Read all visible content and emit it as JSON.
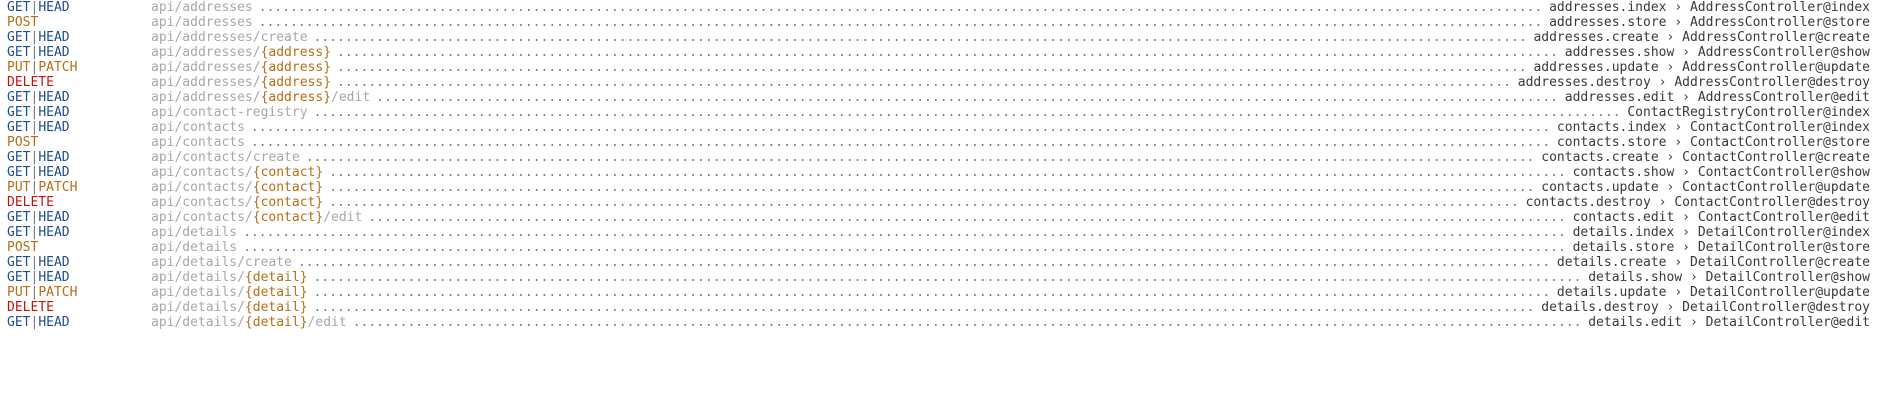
{
  "colors": {
    "get": "#1f4f8a",
    "post": "#b76e16",
    "delete": "#c1140e",
    "uri": "#a8a8a8",
    "param": "#b76e16",
    "target": "#3a3a3a"
  },
  "separator": "|",
  "arrow": "›",
  "routes": [
    {
      "methods": [
        "GET",
        "HEAD"
      ],
      "uri": [
        {
          "t": "api/addresses"
        }
      ],
      "name": "addresses.index",
      "action": "AddressController@index"
    },
    {
      "methods": [
        "POST"
      ],
      "uri": [
        {
          "t": "api/addresses"
        }
      ],
      "name": "addresses.store",
      "action": "AddressController@store"
    },
    {
      "methods": [
        "GET",
        "HEAD"
      ],
      "uri": [
        {
          "t": "api/addresses/create"
        }
      ],
      "name": "addresses.create",
      "action": "AddressController@create"
    },
    {
      "methods": [
        "GET",
        "HEAD"
      ],
      "uri": [
        {
          "t": "api/addresses/"
        },
        {
          "p": "{address}"
        }
      ],
      "name": "addresses.show",
      "action": "AddressController@show"
    },
    {
      "methods": [
        "PUT",
        "PATCH"
      ],
      "uri": [
        {
          "t": "api/addresses/"
        },
        {
          "p": "{address}"
        }
      ],
      "name": "addresses.update",
      "action": "AddressController@update"
    },
    {
      "methods": [
        "DELETE"
      ],
      "uri": [
        {
          "t": "api/addresses/"
        },
        {
          "p": "{address}"
        }
      ],
      "name": "addresses.destroy",
      "action": "AddressController@destroy"
    },
    {
      "methods": [
        "GET",
        "HEAD"
      ],
      "uri": [
        {
          "t": "api/addresses/"
        },
        {
          "p": "{address}"
        },
        {
          "t": "/edit"
        }
      ],
      "name": "addresses.edit",
      "action": "AddressController@edit"
    },
    {
      "methods": [
        "GET",
        "HEAD"
      ],
      "uri": [
        {
          "t": "api/contact-registry"
        }
      ],
      "name": "",
      "action": "ContactRegistryController@index"
    },
    {
      "methods": [
        "GET",
        "HEAD"
      ],
      "uri": [
        {
          "t": "api/contacts"
        }
      ],
      "name": "contacts.index",
      "action": "ContactController@index"
    },
    {
      "methods": [
        "POST"
      ],
      "uri": [
        {
          "t": "api/contacts"
        }
      ],
      "name": "contacts.store",
      "action": "ContactController@store"
    },
    {
      "methods": [
        "GET",
        "HEAD"
      ],
      "uri": [
        {
          "t": "api/contacts/create"
        }
      ],
      "name": "contacts.create",
      "action": "ContactController@create"
    },
    {
      "methods": [
        "GET",
        "HEAD"
      ],
      "uri": [
        {
          "t": "api/contacts/"
        },
        {
          "p": "{contact}"
        }
      ],
      "name": "contacts.show",
      "action": "ContactController@show"
    },
    {
      "methods": [
        "PUT",
        "PATCH"
      ],
      "uri": [
        {
          "t": "api/contacts/"
        },
        {
          "p": "{contact}"
        }
      ],
      "name": "contacts.update",
      "action": "ContactController@update"
    },
    {
      "methods": [
        "DELETE"
      ],
      "uri": [
        {
          "t": "api/contacts/"
        },
        {
          "p": "{contact}"
        }
      ],
      "name": "contacts.destroy",
      "action": "ContactController@destroy"
    },
    {
      "methods": [
        "GET",
        "HEAD"
      ],
      "uri": [
        {
          "t": "api/contacts/"
        },
        {
          "p": "{contact}"
        },
        {
          "t": "/edit"
        }
      ],
      "name": "contacts.edit",
      "action": "ContactController@edit"
    },
    {
      "methods": [
        "GET",
        "HEAD"
      ],
      "uri": [
        {
          "t": "api/details"
        }
      ],
      "name": "details.index",
      "action": "DetailController@index"
    },
    {
      "methods": [
        "POST"
      ],
      "uri": [
        {
          "t": "api/details"
        }
      ],
      "name": "details.store",
      "action": "DetailController@store"
    },
    {
      "methods": [
        "GET",
        "HEAD"
      ],
      "uri": [
        {
          "t": "api/details/create"
        }
      ],
      "name": "details.create",
      "action": "DetailController@create"
    },
    {
      "methods": [
        "GET",
        "HEAD"
      ],
      "uri": [
        {
          "t": "api/details/"
        },
        {
          "p": "{detail}"
        }
      ],
      "name": "details.show",
      "action": "DetailController@show"
    },
    {
      "methods": [
        "PUT",
        "PATCH"
      ],
      "uri": [
        {
          "t": "api/details/"
        },
        {
          "p": "{detail}"
        }
      ],
      "name": "details.update",
      "action": "DetailController@update"
    },
    {
      "methods": [
        "DELETE"
      ],
      "uri": [
        {
          "t": "api/details/"
        },
        {
          "p": "{detail}"
        }
      ],
      "name": "details.destroy",
      "action": "DetailController@destroy"
    },
    {
      "methods": [
        "GET",
        "HEAD"
      ],
      "uri": [
        {
          "t": "api/details/"
        },
        {
          "p": "{detail}"
        },
        {
          "t": "/edit"
        }
      ],
      "name": "details.edit",
      "action": "DetailController@edit"
    }
  ]
}
